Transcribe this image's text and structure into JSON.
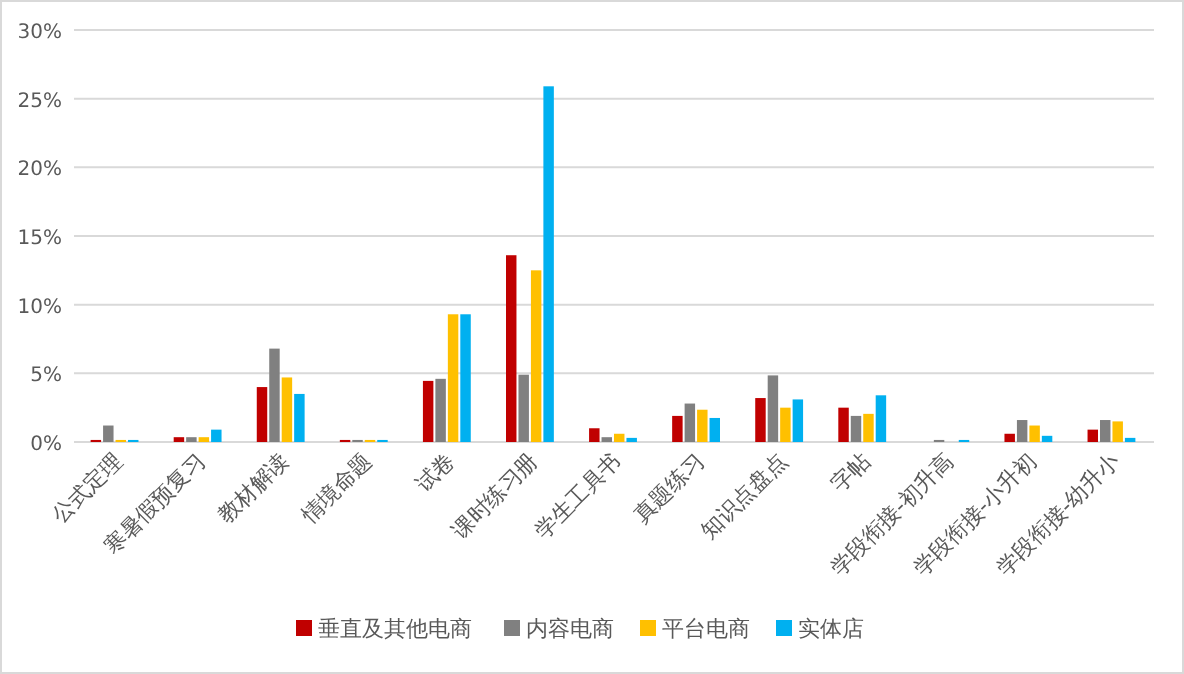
{
  "chart_data": {
    "type": "bar",
    "categories": [
      "公式定理",
      "寒暑假预复习",
      "教材解读",
      "情境命题",
      "试卷",
      "课时练习册",
      "学生工具书",
      "真题练习",
      "知识点盘点",
      "字帖",
      "学段衔接-初升高",
      "学段衔接-小升初",
      "学段衔接-幼升小"
    ],
    "series": [
      {
        "name": "垂直及其他电商",
        "color": "#c00000",
        "values": [
          0.15,
          0.35,
          4.0,
          0.15,
          4.45,
          13.6,
          1.0,
          1.9,
          3.2,
          2.5,
          0,
          0.6,
          0.9
        ]
      },
      {
        "name": "内容电商",
        "color": "#808080",
        "values": [
          1.2,
          0.35,
          6.8,
          0.15,
          4.6,
          4.9,
          0.35,
          2.8,
          4.85,
          1.9,
          0.15,
          1.6,
          1.6
        ]
      },
      {
        "name": "平台电商",
        "color": "#ffc000",
        "values": [
          0.15,
          0.35,
          4.7,
          0.15,
          9.3,
          12.5,
          0.6,
          2.35,
          2.5,
          2.05,
          0,
          1.2,
          1.5
        ]
      },
      {
        "name": "实体店",
        "color": "#00b0f0",
        "values": [
          0.15,
          0.9,
          3.5,
          0.15,
          9.3,
          25.9,
          0.3,
          1.75,
          3.1,
          3.4,
          0.15,
          0.45,
          0.3
        ]
      }
    ],
    "ylim": [
      0,
      30
    ],
    "yticks": [
      {
        "value": 0,
        "label": "0%"
      },
      {
        "value": 5,
        "label": "5%"
      },
      {
        "value": 10,
        "label": "10%"
      },
      {
        "value": 15,
        "label": "15%"
      },
      {
        "value": 20,
        "label": "20%"
      },
      {
        "value": 25,
        "label": "25%"
      },
      {
        "value": 30,
        "label": "30%"
      }
    ],
    "grid": "y",
    "legend": "bottom"
  }
}
